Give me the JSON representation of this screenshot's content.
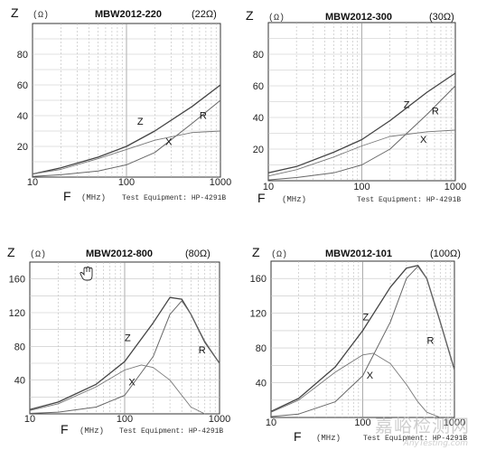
{
  "watermark": {
    "text": "嘉峪检测网",
    "sub": "AnyTesting.com"
  },
  "chart_data": [
    {
      "type": "line",
      "title": "MBW2012-220",
      "impedance_label": "(22Ω)",
      "ylabel": "Z",
      "yunit": "(Ω)",
      "xlabel": "F",
      "xunit": "(MHz)",
      "equipment": "Test Equipment: HP-4291B",
      "xscale": "log",
      "xlim": [
        10,
        1000
      ],
      "ylim": [
        0,
        100
      ],
      "xticks": [
        10,
        100,
        1000
      ],
      "yticks": [
        20,
        40,
        60,
        80
      ],
      "grid": true,
      "series": [
        {
          "name": "Z",
          "x": [
            10,
            20,
            50,
            100,
            200,
            500,
            1000
          ],
          "y": [
            2,
            6,
            13,
            20,
            30,
            46,
            60
          ]
        },
        {
          "name": "R",
          "x": [
            10,
            20,
            50,
            100,
            200,
            500,
            1000
          ],
          "y": [
            0.5,
            1.5,
            4,
            8,
            16,
            35,
            50
          ]
        },
        {
          "name": "X",
          "x": [
            10,
            20,
            50,
            100,
            200,
            500,
            1000
          ],
          "y": [
            2,
            5,
            12,
            18,
            24,
            29,
            30
          ]
        }
      ],
      "label_pos": {
        "Z": [
          130,
          34
        ],
        "R": [
          600,
          38
        ],
        "X": [
          260,
          21
        ]
      }
    },
    {
      "type": "line",
      "title": "MBW2012-300",
      "impedance_label": "(30Ω)",
      "ylabel": "Z",
      "yunit": "(Ω)",
      "xlabel": "F",
      "xunit": "(MHz)",
      "equipment": "Test Equipment: HP-4291B",
      "xscale": "log",
      "xlim": [
        10,
        1000
      ],
      "ylim": [
        0,
        100
      ],
      "xticks": [
        10,
        100,
        1000
      ],
      "yticks": [
        20,
        40,
        60,
        80
      ],
      "grid": true,
      "series": [
        {
          "name": "Z",
          "x": [
            10,
            20,
            50,
            100,
            200,
            500,
            1000
          ],
          "y": [
            5,
            9,
            18,
            26,
            38,
            56,
            68
          ]
        },
        {
          "name": "R",
          "x": [
            10,
            20,
            50,
            100,
            200,
            500,
            1000
          ],
          "y": [
            0.5,
            2,
            5,
            10,
            20,
            42,
            60
          ]
        },
        {
          "name": "X",
          "x": [
            10,
            20,
            50,
            100,
            200,
            500,
            1000
          ],
          "y": [
            3,
            7,
            15,
            22,
            28,
            31,
            32
          ]
        }
      ],
      "label_pos": {
        "Z": [
          280,
          46
        ],
        "R": [
          560,
          42
        ],
        "X": [
          420,
          24
        ]
      }
    },
    {
      "type": "line",
      "title": "MBW2012-800",
      "impedance_label": "(80Ω)",
      "ylabel": "Z",
      "yunit": "(Ω)",
      "xlabel": "F",
      "xunit": "(MHz)",
      "equipment": "Test Equipment: HP-4291B",
      "xscale": "log",
      "xlim": [
        10,
        1000
      ],
      "ylim": [
        0,
        180
      ],
      "xticks": [
        10,
        100,
        1000
      ],
      "yticks": [
        40,
        80,
        120,
        160
      ],
      "grid": true,
      "series": [
        {
          "name": "Z",
          "x": [
            10,
            20,
            50,
            100,
            200,
            300,
            400,
            500,
            700,
            1000
          ],
          "y": [
            5,
            14,
            35,
            62,
            108,
            138,
            136,
            118,
            85,
            60
          ]
        },
        {
          "name": "R",
          "x": [
            10,
            20,
            50,
            100,
            200,
            300,
            400,
            500,
            700,
            1000
          ],
          "y": [
            0.5,
            2,
            8,
            22,
            68,
            118,
            134,
            118,
            86,
            60
          ]
        },
        {
          "name": "X",
          "x": [
            10,
            20,
            50,
            100,
            150,
            200,
            300,
            400,
            500,
            700
          ],
          "y": [
            4,
            12,
            32,
            52,
            58,
            55,
            40,
            22,
            8,
            0
          ]
        }
      ],
      "label_pos": {
        "Z": [
          100,
          86
        ],
        "R": [
          600,
          72
        ],
        "X": [
          110,
          34
        ]
      }
    },
    {
      "type": "line",
      "title": "MBW2012-101",
      "impedance_label": "(100Ω)",
      "ylabel": "Z",
      "yunit": "(Ω)",
      "xlabel": "F",
      "xunit": "(MHz)",
      "equipment": "Test Equipment: HP-4291B",
      "xscale": "log",
      "xlim": [
        10,
        1000
      ],
      "ylim": [
        0,
        180
      ],
      "xticks": [
        10,
        100,
        1000
      ],
      "yticks": [
        40,
        80,
        120,
        160
      ],
      "grid": true,
      "series": [
        {
          "name": "Z",
          "x": [
            10,
            20,
            50,
            100,
            200,
            300,
            400,
            500,
            700,
            1000
          ],
          "y": [
            7,
            22,
            58,
            100,
            150,
            172,
            175,
            160,
            110,
            55
          ]
        },
        {
          "name": "R",
          "x": [
            10,
            20,
            50,
            100,
            200,
            300,
            400,
            500,
            700,
            1000
          ],
          "y": [
            1,
            4,
            18,
            48,
            110,
            160,
            174,
            160,
            110,
            55
          ]
        },
        {
          "name": "X",
          "x": [
            10,
            20,
            50,
            100,
            130,
            200,
            300,
            400,
            500,
            700
          ],
          "y": [
            6,
            20,
            52,
            72,
            74,
            62,
            38,
            18,
            6,
            0
          ]
        }
      ],
      "label_pos": {
        "Z": [
          100,
          112
        ],
        "R": [
          500,
          85
        ],
        "X": [
          110,
          45
        ]
      }
    }
  ]
}
